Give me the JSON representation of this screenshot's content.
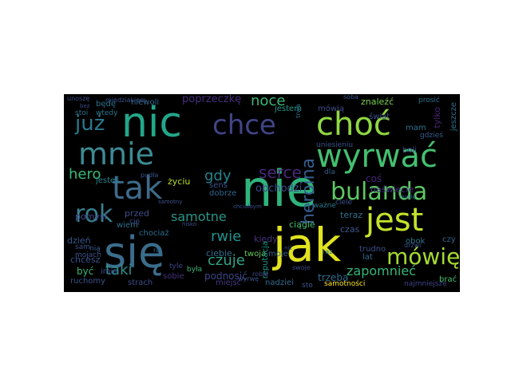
{
  "cloud": {
    "background": "#000000",
    "words": [
      {
        "text": "nie",
        "color": "#2fb47c"
      },
      {
        "text": "jak",
        "color": "#e1e31f"
      },
      {
        "text": "się",
        "color": "#3b6d8c"
      },
      {
        "text": "nic",
        "color": "#23a68a"
      },
      {
        "text": "choć",
        "color": "#8fd744"
      },
      {
        "text": "wyrwać",
        "color": "#44bf70"
      },
      {
        "text": "jest",
        "color": "#c3e32a"
      },
      {
        "text": "tak",
        "color": "#3e6b8b"
      },
      {
        "text": "mnie",
        "color": "#3c8b94"
      },
      {
        "text": "chce",
        "color": "#414487"
      },
      {
        "text": "bulanda",
        "color": "#5cc863"
      },
      {
        "text": "rok",
        "color": "#3a7f8e"
      },
      {
        "text": "mówię",
        "color": "#a5da31"
      },
      {
        "text": "już",
        "color": "#2a788e"
      },
      {
        "text": "heroina",
        "color": "#365c8d"
      },
      {
        "text": "serce",
        "color": "#482878"
      },
      {
        "text": "hero",
        "color": "#38b977"
      },
      {
        "text": "taki",
        "color": "#2c8f8c"
      },
      {
        "text": "gdy",
        "color": "#26828e"
      },
      {
        "text": "noce",
        "color": "#3cb576"
      },
      {
        "text": "samotne",
        "color": "#2a9689"
      },
      {
        "text": "czuje",
        "color": "#33a385"
      },
      {
        "text": "rwie",
        "color": "#21918c"
      },
      {
        "text": "zapomnieć",
        "color": "#35b779"
      },
      {
        "text": "obchodzi",
        "color": "#3e4a89"
      },
      {
        "text": "poprzeczkę",
        "color": "#472e7c"
      },
      {
        "text": "kiedy",
        "color": "#46337e"
      },
      {
        "text": "podnosić",
        "color": "#404688"
      },
      {
        "text": "trzeba",
        "color": "#2f6c8e"
      },
      {
        "text": "pomysł",
        "color": "#3f4889"
      },
      {
        "text": "przed",
        "color": "#3e4c8a"
      },
      {
        "text": "dzień",
        "color": "#38588c"
      },
      {
        "text": "chcesz",
        "color": "#3b528b"
      },
      {
        "text": "życiu",
        "color": "#b8de29"
      },
      {
        "text": "ciągle",
        "color": "#46c06f"
      },
      {
        "text": "niewoli",
        "color": "#31678e"
      },
      {
        "text": "będę",
        "color": "#2c728e"
      },
      {
        "text": "jesteś",
        "color": "#25848e"
      },
      {
        "text": "ciebie",
        "color": "#2d708e"
      },
      {
        "text": "wiem",
        "color": "#2e6f8e"
      },
      {
        "text": "twoja",
        "color": "#67cc5c"
      },
      {
        "text": "jestem",
        "color": "#1f9a8a"
      },
      {
        "text": "mówią",
        "color": "#3d4e8a"
      },
      {
        "text": "znaleźć",
        "color": "#7ad151"
      },
      {
        "text": "soba",
        "color": "#3b528b"
      },
      {
        "text": "tylko",
        "color": "#482677"
      },
      {
        "text": "jeszcze",
        "color": "#2e6e8e"
      },
      {
        "text": "dobrze",
        "color": "#31688e"
      },
      {
        "text": "sens",
        "color": "#3a548c"
      },
      {
        "text": "obok",
        "color": "#2a778e"
      },
      {
        "text": "czas",
        "color": "#38588c"
      },
      {
        "text": "strach",
        "color": "#3d4d8a"
      },
      {
        "text": "sobie",
        "color": "#46327e"
      },
      {
        "text": "moje",
        "color": "#355f8d"
      },
      {
        "text": "reputacja",
        "color": "#1f998a"
      },
      {
        "text": "samotności",
        "color": "#fde725"
      },
      {
        "text": "najmniejsze",
        "color": "#414487"
      },
      {
        "text": "brać",
        "color": "#4ac16d"
      },
      {
        "text": "czy",
        "color": "#32658e"
      },
      {
        "text": "teraz",
        "color": "#2c718e"
      },
      {
        "text": "trudno",
        "color": "#3b528b"
      },
      {
        "text": "lat",
        "color": "#2f6c8e"
      },
      {
        "text": "coś",
        "color": "#482475"
      },
      {
        "text": "naświecie",
        "color": "#46317e"
      },
      {
        "text": "boli",
        "color": "#3e4989"
      },
      {
        "text": "mam",
        "color": "#2b758e"
      },
      {
        "text": "świat",
        "color": "#3d4e8a"
      },
      {
        "text": "być",
        "color": "#37b878"
      },
      {
        "text": "imię",
        "color": "#3e4989"
      },
      {
        "text": "ruchomy",
        "color": "#3b528b"
      },
      {
        "text": "miejsc",
        "color": "#443983"
      },
      {
        "text": "nadziei",
        "color": "#2e6d8e"
      },
      {
        "text": "chociaż",
        "color": "#2d708e"
      },
      {
        "text": "sam",
        "color": "#3a538b"
      },
      {
        "text": "mojach",
        "color": "#3a548c"
      },
      {
        "text": "stoi",
        "color": "#2c738e"
      },
      {
        "text": "wtedy",
        "color": "#2a768e"
      },
      {
        "text": "uniesieniu",
        "color": "#3b528b"
      },
      {
        "text": "była",
        "color": "#38b977"
      },
      {
        "text": "cię",
        "color": "#3e4c8a"
      },
      {
        "text": "nią",
        "color": "#355e8d"
      },
      {
        "text": "tyle",
        "color": "#3f4889"
      },
      {
        "text": "prosić",
        "color": "#2d708e"
      },
      {
        "text": "gdzieś",
        "color": "#365c8d"
      },
      {
        "text": "pudła",
        "color": "#3a538b"
      },
      {
        "text": "miedziakiem",
        "color": "#3b528b"
      },
      {
        "text": "unoszę",
        "color": "#3d4e8a"
      },
      {
        "text": "sto",
        "color": "#39568c"
      },
      {
        "text": "wyrwę",
        "color": "#3b528b"
      },
      {
        "text": "ciele",
        "color": "#3b528b"
      },
      {
        "text": "dla",
        "color": "#355f8d"
      },
      {
        "text": "ważne",
        "color": "#2a788e"
      },
      {
        "text": "myślę",
        "color": "#2e6e8e"
      },
      {
        "text": "samotny",
        "color": "#3a538b"
      },
      {
        "text": "bez",
        "color": "#3e4c8a"
      },
      {
        "text": "chciałbym",
        "color": "#3b528b"
      },
      {
        "text": "niż",
        "color": "#3b528b"
      },
      {
        "text": "trwa",
        "color": "#2c718e"
      },
      {
        "text": "drzwi",
        "color": "#3b528b"
      },
      {
        "text": "raz",
        "color": "#2d708e"
      },
      {
        "text": "raj",
        "color": "#31688e"
      },
      {
        "text": "robię",
        "color": "#3e4a89"
      },
      {
        "text": "swoje",
        "color": "#3e4989"
      },
      {
        "text": "nisko",
        "color": "#3b528b"
      }
    ]
  }
}
